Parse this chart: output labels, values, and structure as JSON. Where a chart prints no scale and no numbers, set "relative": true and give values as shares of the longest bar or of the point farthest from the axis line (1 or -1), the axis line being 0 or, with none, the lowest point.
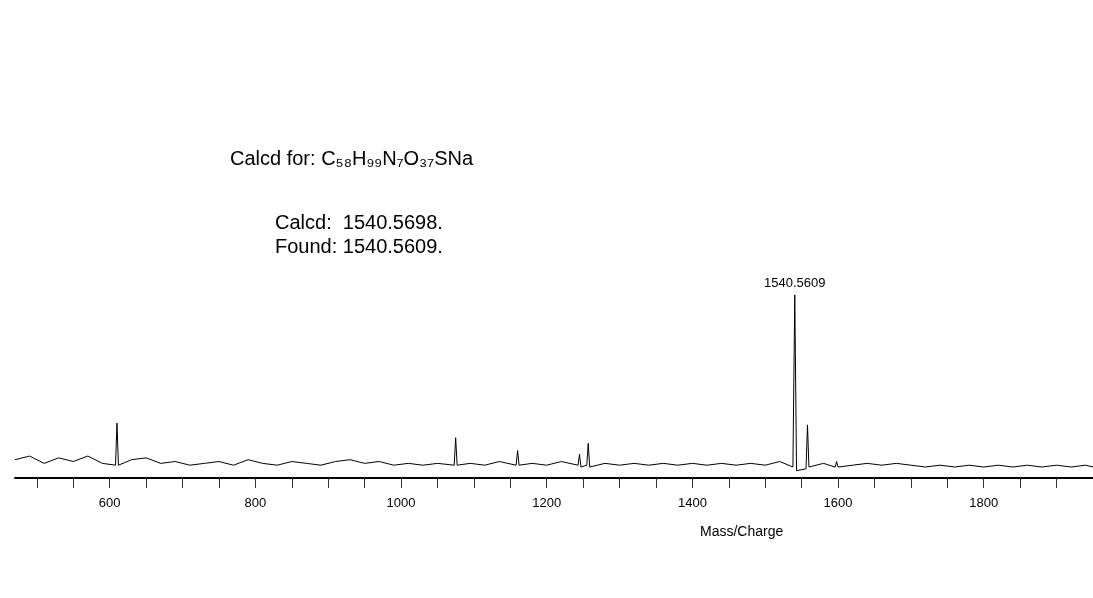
{
  "chart_data": {
    "type": "line",
    "relative": true,
    "xlabel": "Mass/Charge",
    "annotations": [
      "Calcd for: C₅₈H₉₉N₇O₃₇SNa",
      "Calcd:  1540.5698.",
      "Found: 1540.5609.",
      {
        "text": "1540.5609",
        "x": 1540.5609,
        "y": 1
      }
    ],
    "xlim": [
      470,
      1950
    ],
    "xticks": [
      {
        "value": 500,
        "label": null
      },
      {
        "value": 550,
        "label": null
      },
      600,
      {
        "value": 650,
        "label": null
      },
      {
        "value": 700,
        "label": null
      },
      {
        "value": 750,
        "label": null
      },
      800,
      {
        "value": 850,
        "label": null
      },
      {
        "value": 900,
        "label": null
      },
      {
        "value": 950,
        "label": null
      },
      1000,
      {
        "value": 1050,
        "label": null
      },
      {
        "value": 1100,
        "label": null
      },
      {
        "value": 1150,
        "label": null
      },
      1200,
      {
        "value": 1250,
        "label": null
      },
      {
        "value": 1300,
        "label": null
      },
      {
        "value": 1350,
        "label": null
      },
      1400,
      {
        "value": 1450,
        "label": null
      },
      {
        "value": 1500,
        "label": null
      },
      {
        "value": 1550,
        "label": null
      },
      1600,
      {
        "value": 1650,
        "label": null
      },
      {
        "value": 1700,
        "label": null
      },
      {
        "value": 1750,
        "label": null
      },
      1800,
      {
        "value": 1850,
        "label": null
      },
      {
        "value": 1900,
        "label": null
      }
    ],
    "grid": false,
    "marker": "none",
    "line_style": "solid",
    "series": [
      {
        "color": "#000000",
        "x": [
          470,
          490,
          510,
          530,
          550,
          570,
          590,
          608,
          610,
          612,
          630,
          650,
          670,
          690,
          710,
          730,
          750,
          770,
          790,
          810,
          830,
          850,
          870,
          890,
          910,
          930,
          950,
          970,
          990,
          1010,
          1030,
          1050,
          1073,
          1075,
          1077,
          1095,
          1115,
          1135,
          1158,
          1160,
          1162,
          1180,
          1200,
          1220,
          1243,
          1245,
          1247,
          1255,
          1257,
          1259,
          1280,
          1300,
          1320,
          1340,
          1360,
          1380,
          1400,
          1420,
          1440,
          1460,
          1480,
          1500,
          1520,
          1538,
          1540.5609,
          1543,
          1556,
          1558,
          1560,
          1580,
          1596,
          1598,
          1600,
          1620,
          1640,
          1660,
          1680,
          1700,
          1720,
          1740,
          1760,
          1780,
          1800,
          1820,
          1840,
          1860,
          1880,
          1900,
          1920,
          1940,
          1950
        ],
        "values": [
          0.1,
          0.12,
          0.08,
          0.11,
          0.09,
          0.12,
          0.08,
          0.07,
          0.3,
          0.07,
          0.1,
          0.11,
          0.08,
          0.09,
          0.07,
          0.08,
          0.09,
          0.07,
          0.1,
          0.08,
          0.07,
          0.09,
          0.08,
          0.07,
          0.09,
          0.1,
          0.08,
          0.09,
          0.07,
          0.08,
          0.07,
          0.08,
          0.07,
          0.22,
          0.07,
          0.08,
          0.07,
          0.09,
          0.07,
          0.15,
          0.07,
          0.08,
          0.07,
          0.09,
          0.07,
          0.13,
          0.06,
          0.07,
          0.19,
          0.06,
          0.08,
          0.07,
          0.08,
          0.07,
          0.08,
          0.07,
          0.08,
          0.07,
          0.08,
          0.07,
          0.08,
          0.07,
          0.09,
          0.06,
          1,
          0.04,
          0.05,
          0.29,
          0.06,
          0.08,
          0.06,
          0.09,
          0.06,
          0.07,
          0.08,
          0.07,
          0.08,
          0.07,
          0.06,
          0.07,
          0.06,
          0.07,
          0.06,
          0.07,
          0.06,
          0.07,
          0.06,
          0.07,
          0.06,
          0.07,
          0.06
        ]
      }
    ]
  }
}
